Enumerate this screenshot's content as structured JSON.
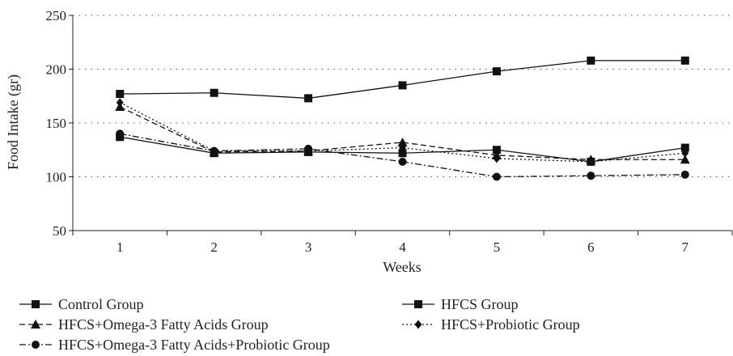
{
  "chart_data": {
    "type": "line",
    "title": "",
    "xlabel": "Weeks",
    "ylabel": "Food Intake (gr)",
    "x": [
      1,
      2,
      3,
      4,
      5,
      6,
      7
    ],
    "xticks": [
      "1",
      "2",
      "3",
      "4",
      "5",
      "6",
      "7"
    ],
    "ylim": [
      50,
      250
    ],
    "yticks": [
      50,
      100,
      150,
      200,
      250
    ],
    "grid": "horizontal dotted",
    "legend_position": "bottom",
    "series": [
      {
        "name": "Control Group",
        "values": [
          137,
          122,
          123,
          122,
          125,
          114,
          127
        ],
        "dash": "solid",
        "marker": "square"
      },
      {
        "name": "HFCS Group",
        "values": [
          177,
          178,
          173,
          185,
          198,
          208,
          208
        ],
        "dash": "solid",
        "marker": "square"
      },
      {
        "name": "HFCS+Omega-3 Fatty Acids Group",
        "values": [
          165,
          123,
          124,
          132,
          120,
          116,
          116
        ],
        "dash": "dashed",
        "marker": "triangle"
      },
      {
        "name": "HFCS+Probiotic Group",
        "values": [
          169,
          124,
          124,
          127,
          117,
          114,
          122
        ],
        "dash": "dotted",
        "marker": "diamond"
      },
      {
        "name": "HFCS+Omega-3 Fatty Acids+Probiotic Group",
        "values": [
          140,
          124,
          126,
          114,
          100,
          101,
          102
        ],
        "dash": "dashdot",
        "marker": "circle"
      }
    ]
  }
}
